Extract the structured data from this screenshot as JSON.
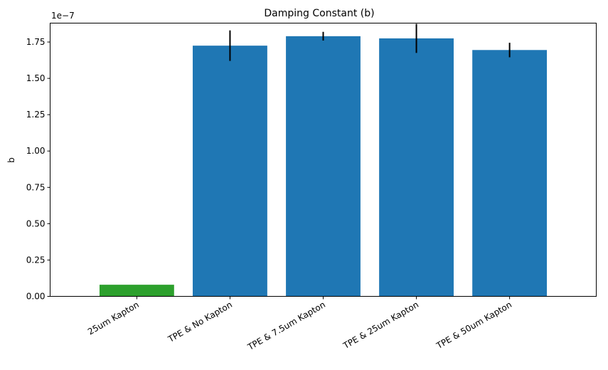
{
  "chart_data": {
    "type": "bar",
    "title": "Damping Constant (b)",
    "xlabel": "",
    "ylabel": "b",
    "y_offset_label": "1e−7",
    "categories": [
      "25um Kapton",
      "TPE & No Kapton",
      "TPE & 7.5um Kapton",
      "TPE & 25um Kapton",
      "TPE & 50um Kapton"
    ],
    "values": [
      8e-09,
      1.725e-07,
      1.79e-07,
      1.775e-07,
      1.695e-07
    ],
    "errors": [
      0,
      1.05e-08,
      3e-09,
      1e-08,
      5e-09
    ],
    "bar_colors": [
      "#2ca02c",
      "#1f77b4",
      "#1f77b4",
      "#1f77b4",
      "#1f77b4"
    ],
    "ylim": [
      0,
      1.88e-07
    ],
    "y_ticks": [
      0,
      2.5e-08,
      5e-08,
      7.5e-08,
      1e-07,
      1.25e-07,
      1.5e-07,
      1.75e-07
    ],
    "y_tick_labels": [
      "0.00",
      "0.25",
      "0.50",
      "0.75",
      "1.00",
      "1.25",
      "1.50",
      "1.75"
    ],
    "grid": false
  }
}
